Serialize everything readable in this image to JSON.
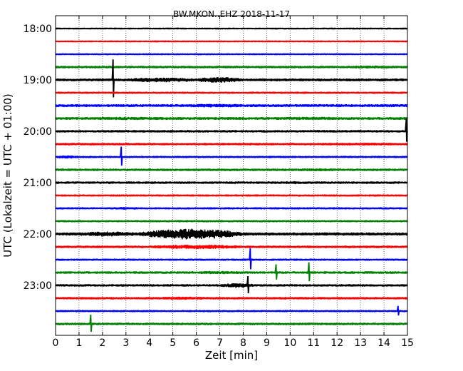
{
  "chart_data": {
    "type": "line",
    "title": "BW.MKON..EHZ 2018-11-17",
    "xlabel": "Zeit  [min]",
    "ylabel": "UTC (Lokalzeit = UTC + 01:00)",
    "xlim": [
      0,
      15
    ],
    "x_ticks": [
      "0",
      "1",
      "2",
      "3",
      "4",
      "5",
      "6",
      "7",
      "8",
      "9",
      "10",
      "11",
      "12",
      "13",
      "14",
      "15"
    ],
    "y_ticks": [
      "18:00",
      "19:00",
      "20:00",
      "21:00",
      "22:00",
      "23:00"
    ],
    "grid": true,
    "trace_colors": [
      "#000000",
      "#ff0000",
      "#0000ff",
      "#008000"
    ],
    "traces": [
      {
        "start": "18:00",
        "amplitude": 0.15
      },
      {
        "start": "18:15",
        "amplitude": 0.15
      },
      {
        "start": "18:30",
        "amplitude": 0.15
      },
      {
        "start": "18:45",
        "amplitude": 0.25,
        "bursts": [
          [
            12.5,
            14.5,
            0.3
          ]
        ]
      },
      {
        "start": "19:00",
        "amplitude": 0.3,
        "bursts": [
          [
            3,
            6,
            0.55
          ],
          [
            6,
            8,
            0.7
          ]
        ],
        "spikes": [
          [
            2.45,
            2.0
          ]
        ]
      },
      {
        "start": "19:15",
        "amplitude": 0.2
      },
      {
        "start": "19:30",
        "amplitude": 0.3,
        "bursts": [
          [
            5.5,
            8,
            0.4
          ]
        ]
      },
      {
        "start": "19:45",
        "amplitude": 0.3,
        "bursts": [
          [
            1.5,
            5,
            0.35
          ],
          [
            9.5,
            12.5,
            0.35
          ]
        ]
      },
      {
        "start": "20:00",
        "amplitude": 0.25,
        "spikes": [
          [
            14.95,
            1.2
          ]
        ]
      },
      {
        "start": "20:15",
        "amplitude": 0.25,
        "bursts": [
          [
            11,
            14.8,
            0.3
          ]
        ]
      },
      {
        "start": "20:30",
        "amplitude": 0.2,
        "bursts": [
          [
            0,
            1,
            0.35
          ]
        ],
        "spikes": [
          [
            2.8,
            1.0
          ]
        ]
      },
      {
        "start": "20:45",
        "amplitude": 0.25,
        "bursts": [
          [
            10,
            12,
            0.3
          ]
        ]
      },
      {
        "start": "21:00",
        "amplitude": 0.25,
        "bursts": [
          [
            9.5,
            10.5,
            0.3
          ]
        ]
      },
      {
        "start": "21:15",
        "amplitude": 0.2
      },
      {
        "start": "21:30",
        "amplitude": 0.2,
        "bursts": [
          [
            2.5,
            3.5,
            0.28
          ]
        ]
      },
      {
        "start": "21:45",
        "amplitude": 0.2
      },
      {
        "start": "22:00",
        "amplitude": 0.35,
        "bursts": [
          [
            1,
            3.5,
            0.6
          ],
          [
            3.5,
            8,
            1.4
          ]
        ]
      },
      {
        "start": "22:15",
        "amplitude": 0.25,
        "bursts": [
          [
            4,
            8,
            0.5
          ]
        ]
      },
      {
        "start": "22:30",
        "amplitude": 0.2,
        "spikes": [
          [
            8.3,
            1.1
          ]
        ]
      },
      {
        "start": "22:45",
        "amplitude": 0.25,
        "bursts": [
          [
            6,
            8,
            0.35
          ]
        ],
        "spikes": [
          [
            9.4,
            0.8
          ],
          [
            10.8,
            1.0
          ]
        ]
      },
      {
        "start": "23:00",
        "amplitude": 0.25,
        "bursts": [
          [
            7,
            8.5,
            0.5
          ]
        ],
        "spikes": [
          [
            8.2,
            0.9
          ]
        ]
      },
      {
        "start": "23:15",
        "amplitude": 0.25,
        "bursts": [
          [
            4.5,
            6.5,
            0.35
          ]
        ]
      },
      {
        "start": "23:30",
        "amplitude": 0.2,
        "spikes": [
          [
            14.6,
            0.5
          ]
        ]
      },
      {
        "start": "23:45",
        "amplitude": 0.25,
        "spikes": [
          [
            1.5,
            0.9
          ]
        ]
      }
    ]
  }
}
